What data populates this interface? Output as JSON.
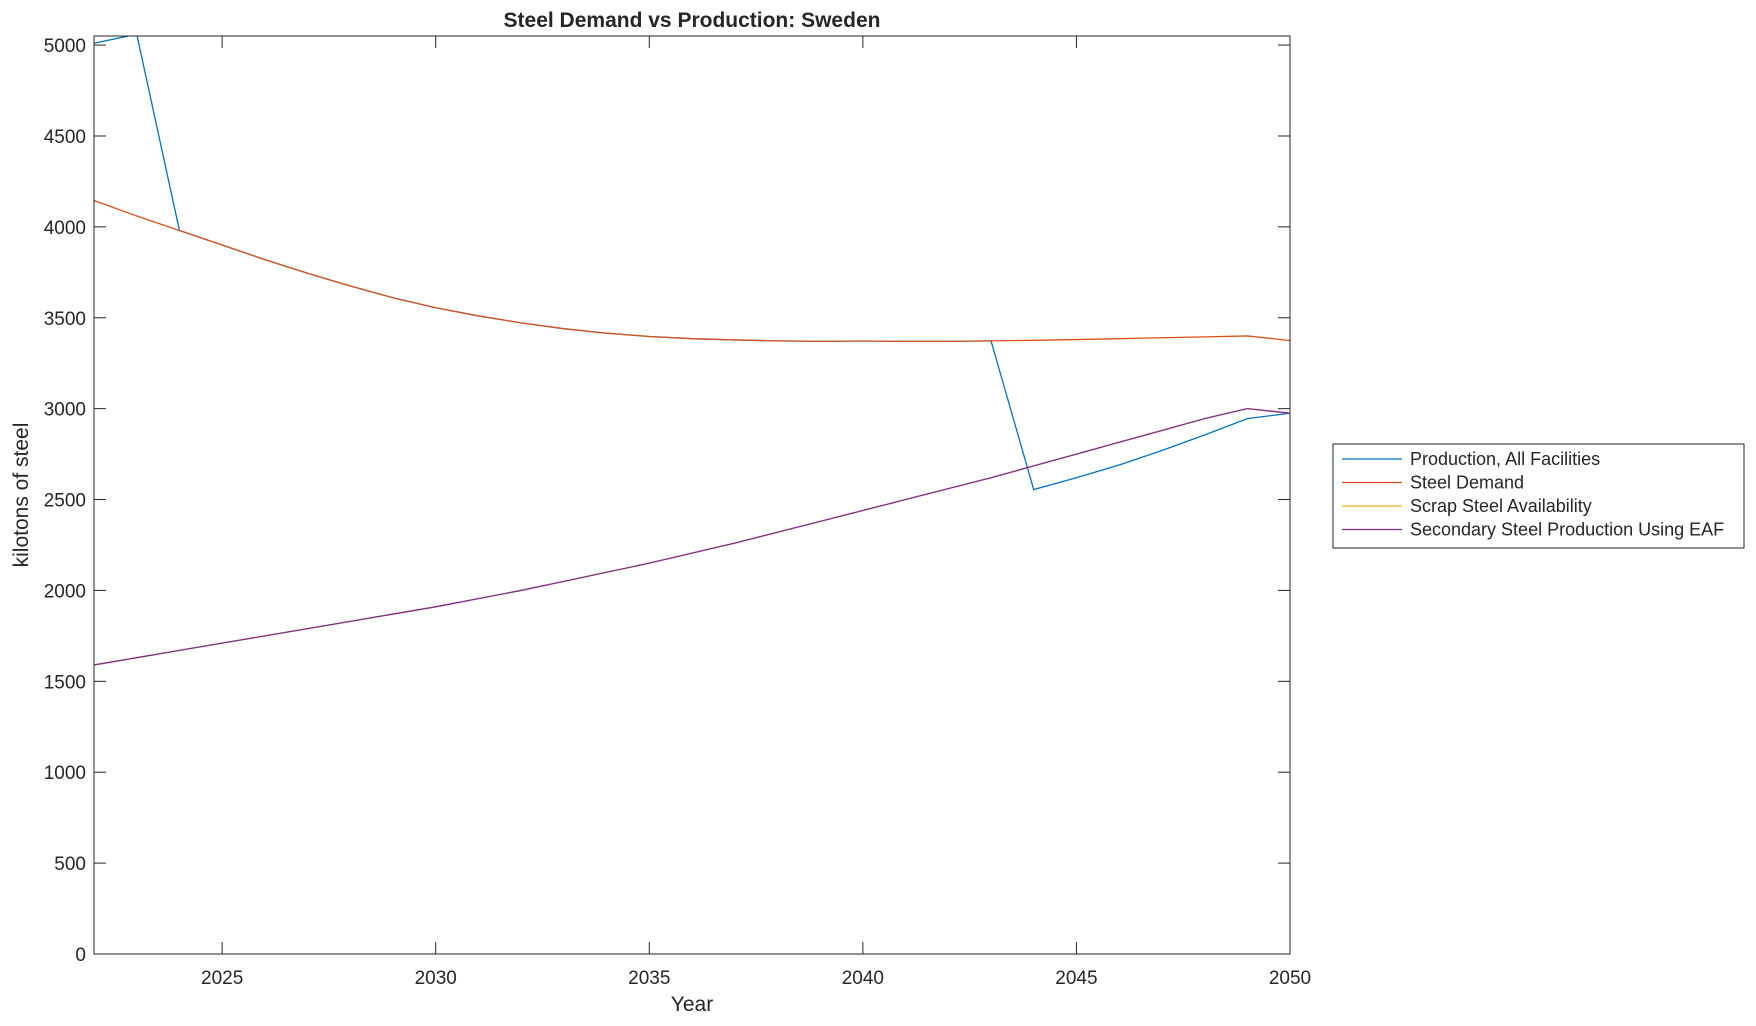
{
  "chart_data": {
    "type": "line",
    "title": "Steel Demand vs Production: Sweden",
    "xlabel": "Year",
    "ylabel": "kilotons of steel",
    "xlim": [
      2022,
      2050
    ],
    "ylim": [
      0,
      5050
    ],
    "xticks": [
      2025,
      2030,
      2035,
      2040,
      2045,
      2050
    ],
    "yticks": [
      0,
      500,
      1000,
      1500,
      2000,
      2500,
      3000,
      3500,
      4000,
      4500,
      5000
    ],
    "grid": false,
    "legend_position": "outside-right",
    "series": [
      {
        "name": "Production, All Facilities",
        "color": "#0072BD",
        "x": [
          2022,
          2023,
          2024,
          2025,
          2026,
          2027,
          2028,
          2029,
          2030,
          2031,
          2032,
          2033,
          2034,
          2035,
          2036,
          2037,
          2038,
          2039,
          2040,
          2041,
          2042,
          2043,
          2044,
          2045,
          2046,
          2047,
          2048,
          2049,
          2050
        ],
        "y": [
          5010,
          5060,
          3980,
          3900,
          3820,
          3745,
          3675,
          3610,
          3555,
          3510,
          3472,
          3440,
          3415,
          3397,
          3385,
          3378,
          3373,
          3370,
          3372,
          3370,
          3370,
          3373,
          2555,
          2620,
          2690,
          2770,
          2855,
          2945,
          2975
        ]
      },
      {
        "name": "Steel Demand",
        "color": "#D95319",
        "x": [
          2022,
          2023,
          2024,
          2025,
          2026,
          2027,
          2028,
          2029,
          2030,
          2031,
          2032,
          2033,
          2034,
          2035,
          2036,
          2037,
          2038,
          2039,
          2040,
          2041,
          2042,
          2043,
          2044,
          2045,
          2046,
          2047,
          2048,
          2049,
          2050
        ],
        "y": [
          4145,
          4060,
          3980,
          3900,
          3820,
          3745,
          3675,
          3610,
          3555,
          3510,
          3472,
          3440,
          3415,
          3397,
          3385,
          3378,
          3373,
          3370,
          3372,
          3370,
          3370,
          3373,
          3376,
          3380,
          3385,
          3390,
          3395,
          3400,
          3375
        ]
      },
      {
        "name": "Scrap Steel Availability",
        "color": "#EDB120",
        "x": [
          2022,
          2023,
          2024,
          2025,
          2026,
          2027,
          2028,
          2029,
          2030,
          2031,
          2032,
          2033,
          2034,
          2035,
          2036,
          2037,
          2038,
          2039,
          2040,
          2041,
          2042,
          2043,
          2044,
          2045,
          2046,
          2047,
          2048,
          2049,
          2050
        ],
        "y": [
          1590,
          1630,
          1670,
          1710,
          1750,
          1790,
          1830,
          1870,
          1910,
          1955,
          2000,
          2050,
          2100,
          2150,
          2205,
          2260,
          2320,
          2380,
          2440,
          2500,
          2560,
          2620,
          2685,
          2750,
          2815,
          2880,
          2945,
          3000,
          2975
        ]
      },
      {
        "name": "Secondary Steel Production Using EAF",
        "color": "#7E2F8E",
        "x": [
          2022,
          2023,
          2024,
          2025,
          2026,
          2027,
          2028,
          2029,
          2030,
          2031,
          2032,
          2033,
          2034,
          2035,
          2036,
          2037,
          2038,
          2039,
          2040,
          2041,
          2042,
          2043,
          2044,
          2045,
          2046,
          2047,
          2048,
          2049,
          2050
        ],
        "y": [
          1590,
          1630,
          1670,
          1710,
          1750,
          1790,
          1830,
          1870,
          1910,
          1955,
          2000,
          2050,
          2100,
          2150,
          2205,
          2260,
          2320,
          2380,
          2440,
          2500,
          2560,
          2620,
          2685,
          2750,
          2815,
          2880,
          2945,
          3000,
          2975
        ]
      }
    ]
  }
}
